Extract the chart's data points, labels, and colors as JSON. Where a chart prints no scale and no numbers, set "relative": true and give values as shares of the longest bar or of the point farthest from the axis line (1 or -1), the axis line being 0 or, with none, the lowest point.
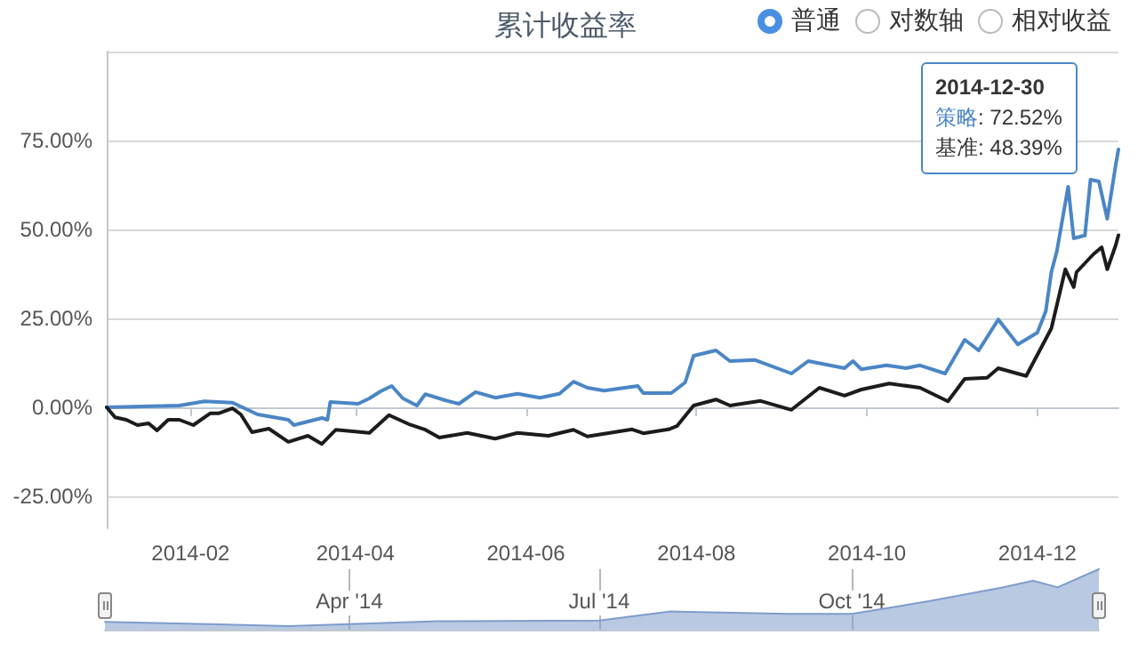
{
  "chart_data": [
    {
      "type": "line",
      "title": "累计收益率",
      "annotations": [
        "普通",
        "对数轴",
        "相对收益",
        "2014-12-30",
        "策略: 72.52%",
        "基准: 48.39%"
      ],
      "xlim": [
        "2014-01-02",
        "2014-12-30"
      ],
      "xticks": [
        {
          "value": "2014-02-01",
          "label": "2014-02"
        },
        {
          "value": "2014-04-01",
          "label": "2014-04"
        },
        {
          "value": "2014-06-01",
          "label": "2014-06"
        },
        {
          "value": "2014-08-01",
          "label": "2014-08"
        },
        {
          "value": "2014-10-01",
          "label": "2014-10"
        },
        {
          "value": "2014-12-01",
          "label": "2014-12"
        }
      ],
      "ylim": [
        -34,
        100
      ],
      "yticks": [
        {
          "value": -25,
          "label": "-25.00%"
        },
        {
          "value": 0,
          "label": "0.00%"
        },
        {
          "value": 25,
          "label": "25.00%"
        },
        {
          "value": 50,
          "label": "50.00%"
        },
        {
          "value": 75,
          "label": "75.00%"
        },
        {
          "value": 100,
          "label": null
        }
      ],
      "grid": "y",
      "series": [
        {
          "color": "#4a86c5",
          "x": [
            "2014-01-02",
            "2014-01-28",
            "2014-02-06",
            "2014-02-16",
            "2014-02-25",
            "2014-03-08",
            "2014-03-10",
            "2014-03-20",
            "2014-03-22",
            "2014-03-23",
            "2014-04-02",
            "2014-04-06",
            "2014-04-10",
            "2014-04-14",
            "2014-04-18",
            "2014-04-23",
            "2014-04-26",
            "2014-05-03",
            "2014-05-08",
            "2014-05-14",
            "2014-05-21",
            "2014-05-29",
            "2014-06-06",
            "2014-06-13",
            "2014-06-18",
            "2014-06-23",
            "2014-06-29",
            "2014-07-11",
            "2014-07-13",
            "2014-07-23",
            "2014-07-28",
            "2014-07-31",
            "2014-08-08",
            "2014-08-13",
            "2014-08-22",
            "2014-09-04",
            "2014-09-10",
            "2014-09-23",
            "2014-09-26",
            "2014-09-29",
            "2014-10-08",
            "2014-10-15",
            "2014-10-20",
            "2014-10-29",
            "2014-11-05",
            "2014-11-10",
            "2014-11-17",
            "2014-11-24",
            "2014-12-01",
            "2014-12-04",
            "2014-12-06",
            "2014-12-08",
            "2014-12-12",
            "2014-12-14",
            "2014-12-18",
            "2014-12-20",
            "2014-12-23",
            "2014-12-26",
            "2014-12-29",
            "2014-12-30"
          ],
          "values": [
            0,
            0.5,
            1.7,
            1.3,
            -2,
            -3.5,
            -5,
            -3,
            -3.5,
            1.5,
            1,
            2.5,
            4.5,
            6,
            2.5,
            0.5,
            3.7,
            2,
            1,
            4.3,
            2.7,
            3.8,
            2.7,
            3.8,
            7.2,
            5.5,
            4.7,
            6,
            4,
            4,
            7,
            14.5,
            16,
            13,
            13.3,
            9.5,
            13,
            11,
            13,
            10.7,
            11.8,
            11,
            11.8,
            9.5,
            19,
            16,
            24.7,
            17.7,
            21,
            27,
            38,
            44,
            62,
            47.5,
            48.3,
            64,
            63.5,
            53,
            68,
            72.52
          ]
        },
        {
          "color": "#1c1c1c",
          "x": [
            "2014-01-02",
            "2014-01-05",
            "2014-01-09",
            "2014-01-13",
            "2014-01-17",
            "2014-01-20",
            "2014-01-24",
            "2014-01-28",
            "2014-02-02",
            "2014-02-08",
            "2014-02-11",
            "2014-02-16",
            "2014-02-19",
            "2014-02-23",
            "2014-03-01",
            "2014-03-08",
            "2014-03-15",
            "2014-03-20",
            "2014-03-25",
            "2014-04-06",
            "2014-04-13",
            "2014-04-20",
            "2014-04-26",
            "2014-05-01",
            "2014-05-11",
            "2014-05-21",
            "2014-05-29",
            "2014-06-09",
            "2014-06-18",
            "2014-06-23",
            "2014-07-09",
            "2014-07-13",
            "2014-07-22",
            "2014-07-25",
            "2014-07-31",
            "2014-08-08",
            "2014-08-13",
            "2014-08-24",
            "2014-09-04",
            "2014-09-14",
            "2014-09-23",
            "2014-09-29",
            "2014-10-09",
            "2014-10-20",
            "2014-10-30",
            "2014-11-05",
            "2014-11-13",
            "2014-11-17",
            "2014-11-27",
            "2014-12-06",
            "2014-12-11",
            "2014-12-14",
            "2014-12-15",
            "2014-12-21",
            "2014-12-24",
            "2014-12-26",
            "2014-12-29",
            "2014-12-30"
          ],
          "values": [
            0,
            -2.8,
            -3.5,
            -5,
            -4.5,
            -6.5,
            -3.5,
            -3.5,
            -5,
            -1.7,
            -1.7,
            -0.3,
            -2,
            -7,
            -6,
            -9.7,
            -8,
            -10.3,
            -6.3,
            -7.2,
            -2.2,
            -4.7,
            -6.3,
            -8.5,
            -7.2,
            -8.8,
            -7.2,
            -8,
            -6.3,
            -8.2,
            -6.2,
            -7.3,
            -6.2,
            -5.3,
            0.5,
            2.2,
            0.5,
            1.8,
            -0.7,
            5.5,
            3.3,
            5,
            6.7,
            5.5,
            1.7,
            8,
            8.3,
            11,
            8.8,
            22.2,
            38.8,
            33.8,
            38,
            43,
            45,
            38.8,
            45.5,
            48.39
          ]
        }
      ]
    },
    {
      "type": "area",
      "relative": true,
      "grid": "x",
      "xlim": [
        "2014-01-02",
        "2014-12-30"
      ],
      "xticks": [
        {
          "value": "2014-04-01",
          "label": "Apr '14"
        },
        {
          "value": "2014-07-01",
          "label": "Jul '14"
        },
        {
          "value": "2014-10-01",
          "label": "Oct '14"
        }
      ],
      "series": [
        {
          "color": "#7f9ccb",
          "x": [
            "2014-01-02",
            "2014-03-10",
            "2014-05-03",
            "2014-07-01",
            "2014-07-27",
            "2014-09-08",
            "2014-10-01",
            "2014-10-29",
            "2014-11-25",
            "2014-12-06",
            "2014-12-15",
            "2014-12-30"
          ],
          "values": [
            0.13,
            0.06,
            0.14,
            0.15,
            0.3,
            0.26,
            0.26,
            0.47,
            0.7,
            0.81,
            0.7,
            1
          ]
        }
      ]
    }
  ]
}
